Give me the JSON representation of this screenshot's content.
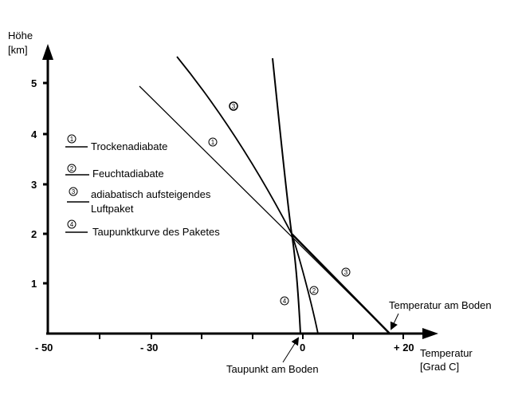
{
  "axes": {
    "y_title_line1": "Höhe",
    "y_title_line2": "[km]",
    "x_title_line1": "Temperatur",
    "x_title_line2": "[Grad C]",
    "y_ticks": [
      "1",
      "2",
      "3",
      "4",
      "5"
    ],
    "x_ticks": [
      "- 50",
      "- 30",
      "0",
      "+ 20"
    ]
  },
  "legend": {
    "items": [
      {
        "num": "1",
        "line1": "Trockenadiabate",
        "line2": ""
      },
      {
        "num": "2",
        "line1": "Feuchtadiabate",
        "line2": ""
      },
      {
        "num": "3",
        "line1": "adiabatisch aufsteigendes",
        "line2": "Luftpaket"
      },
      {
        "num": "4",
        "line1": "Taupunktkurve des Paketes",
        "line2": ""
      }
    ]
  },
  "curve_markers": [
    "1",
    "3",
    "3",
    "2",
    "4"
  ],
  "annotations": {
    "surface_temperature": "Temperatur am Boden",
    "surface_dewpoint": "Taupunkt am Boden"
  }
}
